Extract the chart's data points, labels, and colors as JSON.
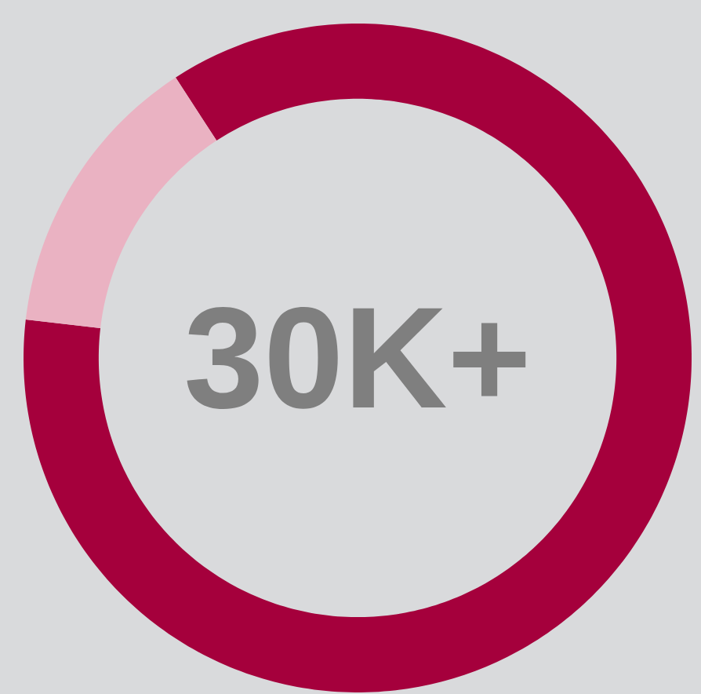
{
  "chart_data": {
    "type": "donut",
    "categories": [
      null,
      null
    ],
    "values": [
      86,
      14
    ],
    "colors": [
      "#a5003c",
      "#eab2c2"
    ],
    "annotations": [
      "30K+"
    ]
  }
}
